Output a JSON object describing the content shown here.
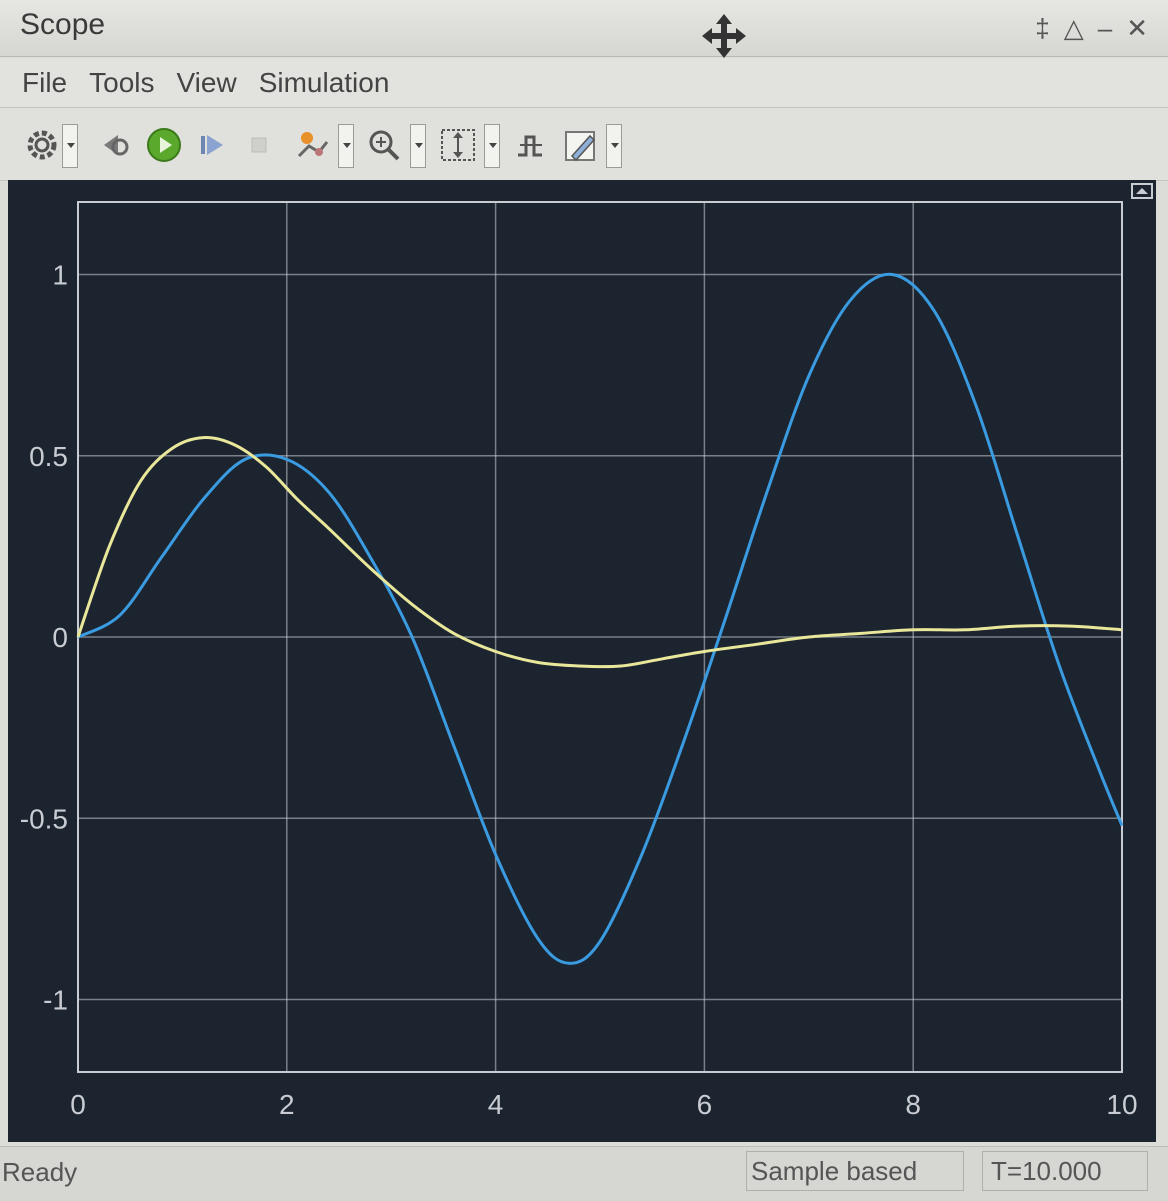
{
  "window": {
    "title": "Scope",
    "controls": [
      "‡",
      "△",
      "–",
      "✕"
    ]
  },
  "menu": {
    "items": [
      "File",
      "Tools",
      "View",
      "Simulation"
    ]
  },
  "toolbar": {
    "icons": [
      "gear-icon",
      "step-back-icon",
      "run-icon",
      "step-forward-icon",
      "stop-icon",
      "highlight-icon",
      "zoom-icon",
      "scale-axes-icon",
      "triggers-icon",
      "style-icon"
    ]
  },
  "status": {
    "ready": "Ready",
    "mode": "Sample based",
    "time": "T=10.000"
  },
  "colors": {
    "plot_background": "#1c2430",
    "grid": "#c9ccd2",
    "series_blue": "#3b9be0",
    "series_yellow": "#e9e79a"
  },
  "chart_data": {
    "type": "line",
    "title": "",
    "xlabel": "",
    "ylabel": "",
    "xlim": [
      0,
      10
    ],
    "ylim": [
      -1.2,
      1.2
    ],
    "x_ticks": [
      0,
      2,
      4,
      6,
      8,
      10
    ],
    "y_ticks": [
      1,
      0.5,
      0,
      -0.5,
      -1
    ],
    "x_tick_labels": [
      "0",
      "2",
      "4",
      "6",
      "8",
      "10"
    ],
    "y_tick_labels": [
      "1",
      "0.5",
      "0",
      "-0.5",
      "-1"
    ],
    "grid": true,
    "legend": false,
    "series": [
      {
        "name": "blue",
        "x": [
          0,
          0.4,
          0.8,
          1.2,
          1.6,
          2.0,
          2.4,
          2.8,
          3.2,
          3.6,
          4.0,
          4.4,
          4.7,
          5.0,
          5.4,
          5.8,
          6.2,
          6.6,
          7.0,
          7.4,
          7.8,
          8.2,
          8.6,
          9.0,
          9.4,
          9.8,
          10.0
        ],
        "y": [
          0,
          0.06,
          0.22,
          0.38,
          0.49,
          0.49,
          0.4,
          0.22,
          0.0,
          -0.3,
          -0.6,
          -0.83,
          -0.9,
          -0.84,
          -0.6,
          -0.29,
          0.05,
          0.4,
          0.72,
          0.93,
          1.0,
          0.9,
          0.64,
          0.28,
          -0.08,
          -0.38,
          -0.52
        ]
      },
      {
        "name": "yellow",
        "x": [
          0,
          0.3,
          0.6,
          0.9,
          1.2,
          1.5,
          1.8,
          2.1,
          2.4,
          2.8,
          3.2,
          3.6,
          4.0,
          4.4,
          4.8,
          5.2,
          5.6,
          6.0,
          6.5,
          7.0,
          7.5,
          8.0,
          8.5,
          9.0,
          9.5,
          10.0
        ],
        "y": [
          0,
          0.25,
          0.43,
          0.52,
          0.55,
          0.53,
          0.47,
          0.38,
          0.3,
          0.19,
          0.09,
          0.01,
          -0.04,
          -0.07,
          -0.08,
          -0.08,
          -0.06,
          -0.04,
          -0.02,
          0.0,
          0.01,
          0.02,
          0.02,
          0.03,
          0.03,
          0.02
        ]
      }
    ]
  }
}
